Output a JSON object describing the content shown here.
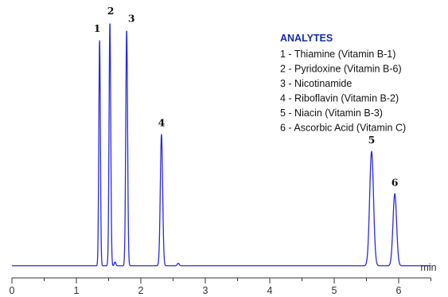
{
  "chart_data": {
    "type": "line",
    "xlabel": "min",
    "xlim": [
      0,
      6.5
    ],
    "xticks": [
      "0",
      "1",
      "2",
      "3",
      "4",
      "5",
      "6"
    ],
    "ylim": [
      0,
      1
    ],
    "grid": false,
    "legend_placement": "top-right",
    "line_color": "#2a2ae0",
    "legend_title_color": "#1a2aa8",
    "baseline_value": 0.02,
    "peaks": [
      {
        "label": "1",
        "name": "Thiamine (Vitamin B-1)",
        "rt": 1.36,
        "height": 0.93,
        "width": 0.012
      },
      {
        "label": "2",
        "name": "Pyridoxine (Vitamin B-6)",
        "rt": 1.52,
        "height": 1.0,
        "width": 0.013
      },
      {
        "label": "3",
        "name": "Nicotinamide",
        "rt": 1.78,
        "height": 0.97,
        "width": 0.014
      },
      {
        "label": "4",
        "name": "Riboflavin (Vitamin B-2)",
        "rt": 2.32,
        "height": 0.55,
        "width": 0.018
      },
      {
        "label": "5",
        "name": "Niacin (Vitamin B-3)",
        "rt": 5.58,
        "height": 0.48,
        "width": 0.03
      },
      {
        "label": "6",
        "name": "Ascorbic Acid (Vitamin C)",
        "rt": 5.94,
        "height": 0.31,
        "width": 0.028
      }
    ],
    "minor_peaks": [
      {
        "rt": 1.6,
        "height": 0.035,
        "width": 0.012
      },
      {
        "rt": 2.58,
        "height": 0.03,
        "width": 0.015
      }
    ],
    "legend": {
      "title": "ANALYTES",
      "items": [
        "1 - Thiamine (Vitamin B-1)",
        "2 - Pyridoxine (Vitamin B-6)",
        "3 - Nicotinamide",
        "4 - Riboflavin (Vitamin B-2)",
        "5 - Niacin (Vitamin B-3)",
        "6 - Ascorbic Acid (Vitamin C)"
      ]
    }
  }
}
